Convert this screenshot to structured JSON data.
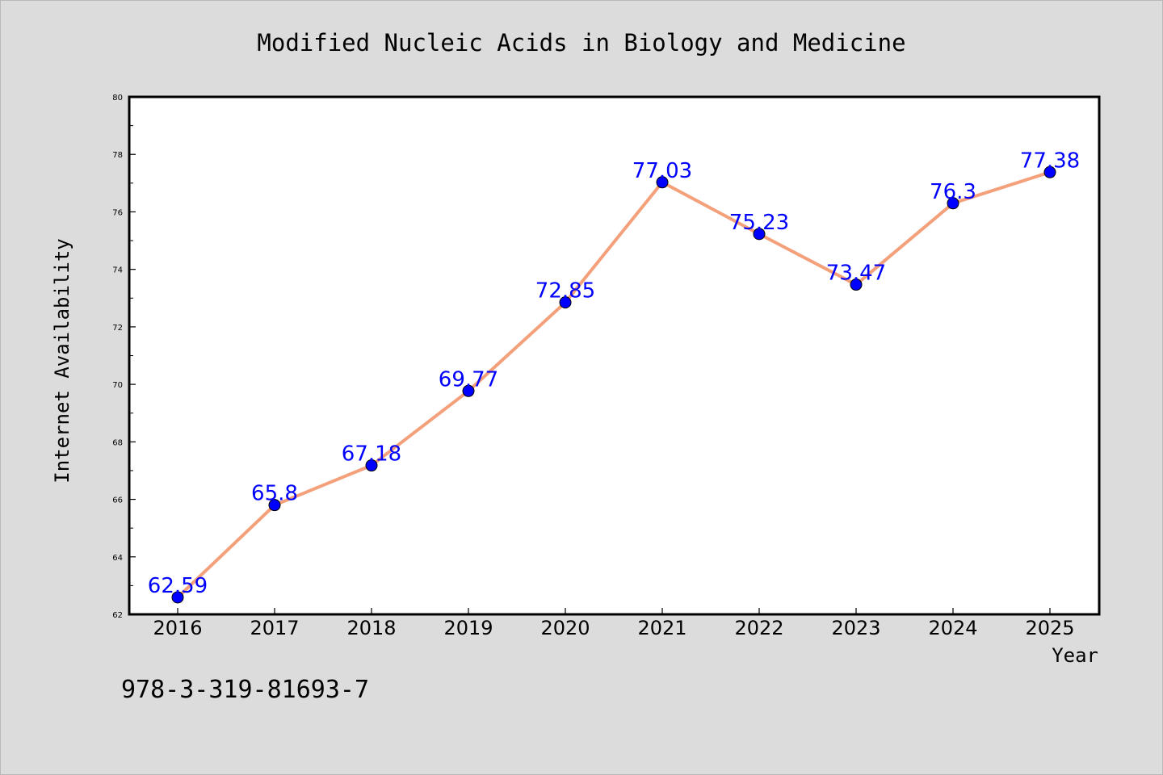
{
  "chart_data": {
    "type": "line",
    "title": "Modified Nucleic Acids in Biology and Medicine",
    "xlabel": "Year",
    "ylabel": "Internet Availability",
    "categories": [
      "2016",
      "2017",
      "2018",
      "2019",
      "2020",
      "2021",
      "2022",
      "2023",
      "2024",
      "2025"
    ],
    "series": [
      {
        "values": [
          62.59,
          65.8,
          67.18,
          69.77,
          72.85,
          77.03,
          75.23,
          73.47,
          76.3,
          77.38
        ],
        "data_labels": [
          "62.59",
          "65.8",
          "67.18",
          "69.77",
          "72.85",
          "77.03",
          "75.23",
          "73.47",
          "76.3",
          "77.38"
        ],
        "line_color": "#f4a07a",
        "marker_color": "#0000ff"
      }
    ],
    "ylim": [
      62,
      80
    ],
    "yticks": [
      "62",
      "64",
      "66",
      "68",
      "70",
      "72",
      "74",
      "76",
      "78",
      "80"
    ],
    "grid": false,
    "legend": "none"
  },
  "annotation": {
    "isbn": "978-3-319-81693-7"
  },
  "colors": {
    "background": "#dcdcdc",
    "plot_background": "#ffffff",
    "line": "#f4a07a",
    "marker": "#0000ff",
    "data_label": "#0000ff"
  }
}
